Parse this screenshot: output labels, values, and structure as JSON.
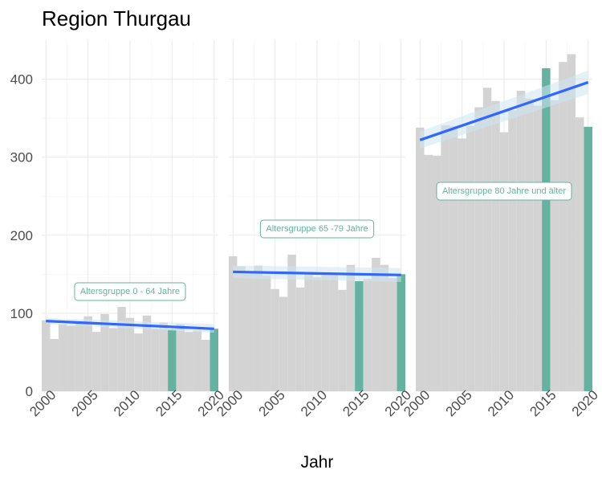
{
  "chart_data": {
    "type": "bar",
    "title": "Region Thurgau",
    "xlabel": "Jahr",
    "ylabel": "",
    "ylim": [
      0,
      450
    ],
    "yticks": [
      0,
      100,
      200,
      300,
      400
    ],
    "xticks": [
      2000,
      2005,
      2010,
      2015,
      2020
    ],
    "xlim": [
      1999.5,
      2020.5
    ],
    "grid": true,
    "colors": {
      "bar": "#d3d3d3",
      "highlight": "#66b2a0",
      "trend": "#3366ff",
      "band": "#cde6f1"
    },
    "years": [
      2000,
      2001,
      2002,
      2003,
      2004,
      2005,
      2006,
      2007,
      2008,
      2009,
      2010,
      2011,
      2012,
      2013,
      2014,
      2015,
      2016,
      2017,
      2018,
      2019,
      2020
    ],
    "highlight_years": [
      2015,
      2020
    ],
    "panels": [
      {
        "annotation": "Altersgruppe 0 - 64 Jahre",
        "values": [
          91,
          67,
          86,
          84,
          88,
          96,
          76,
          99,
          81,
          108,
          94,
          74,
          97,
          80,
          88,
          79,
          86,
          76,
          78,
          66,
          80
        ],
        "trend": [
          90,
          80
        ],
        "band": [
          [
            86,
            94
          ],
          [
            75,
            86
          ]
        ]
      },
      {
        "annotation": "Altersgruppe 65 -79 Jahre",
        "values": [
          173,
          160,
          152,
          161,
          148,
          131,
          121,
          175,
          133,
          152,
          146,
          151,
          149,
          130,
          162,
          141,
          144,
          171,
          162,
          145,
          150
        ],
        "trend": [
          153,
          149
        ],
        "band": [
          [
            145,
            161
          ],
          [
            140,
            158
          ]
        ]
      },
      {
        "annotation": "Altersgruppe 80 Jahre und älter",
        "values": [
          338,
          303,
          302,
          341,
          340,
          324,
          340,
          364,
          389,
          372,
          332,
          360,
          385,
          375,
          366,
          414,
          373,
          422,
          432,
          351,
          339
        ],
        "trend": [
          322,
          396
        ],
        "band": [
          [
            311,
            333
          ],
          [
            381,
            411
          ]
        ]
      }
    ]
  }
}
